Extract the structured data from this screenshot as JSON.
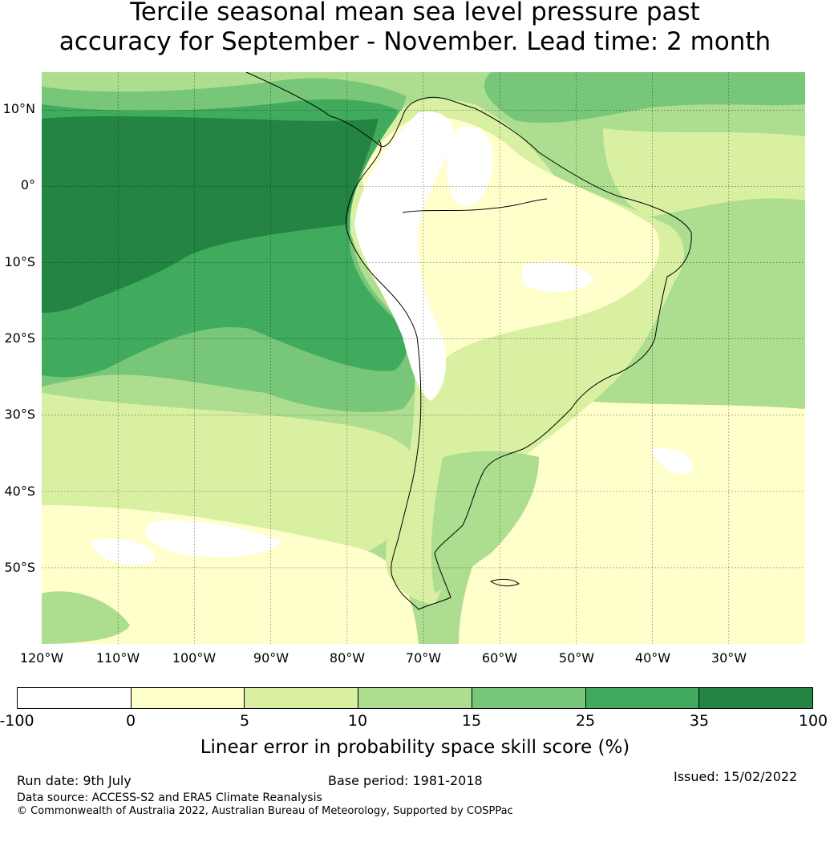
{
  "title": {
    "line1": "Tercile seasonal mean sea level pressure past",
    "line2": "accuracy for September - November. Lead time: 2 month"
  },
  "map": {
    "lat_ticks": [
      "10°N",
      "0°",
      "10°S",
      "20°S",
      "30°S",
      "40°S",
      "50°S"
    ],
    "lon_ticks": [
      "120°W",
      "110°W",
      "100°W",
      "90°W",
      "80°W",
      "70°W",
      "60°W",
      "50°W",
      "40°W",
      "30°W"
    ],
    "extent": {
      "lon": [
        -120,
        -20
      ],
      "lat": [
        -60,
        15
      ]
    },
    "land_outline": "South America coastline"
  },
  "colorbar": {
    "bounds": [
      "-100",
      "0",
      "5",
      "10",
      "15",
      "25",
      "35",
      "100"
    ],
    "colors": [
      "#ffffff",
      "#ffffcc",
      "#d9f0a3",
      "#addd8e",
      "#78c679",
      "#41ab5d",
      "#238443"
    ],
    "label": "Linear error in probability space skill score (%)"
  },
  "footer": {
    "run_date": "Run date: 9th July",
    "base_period": "Base period: 1981-2018",
    "issued": "Issued: 15/02/2022",
    "data_source": "Data source: ACCESS-S2 and ERA5 Climate Reanalysis",
    "copyright": "© Commonwealth of Australia 2022, Australian Bureau of Meteorology, Supported by COSPPac"
  }
}
